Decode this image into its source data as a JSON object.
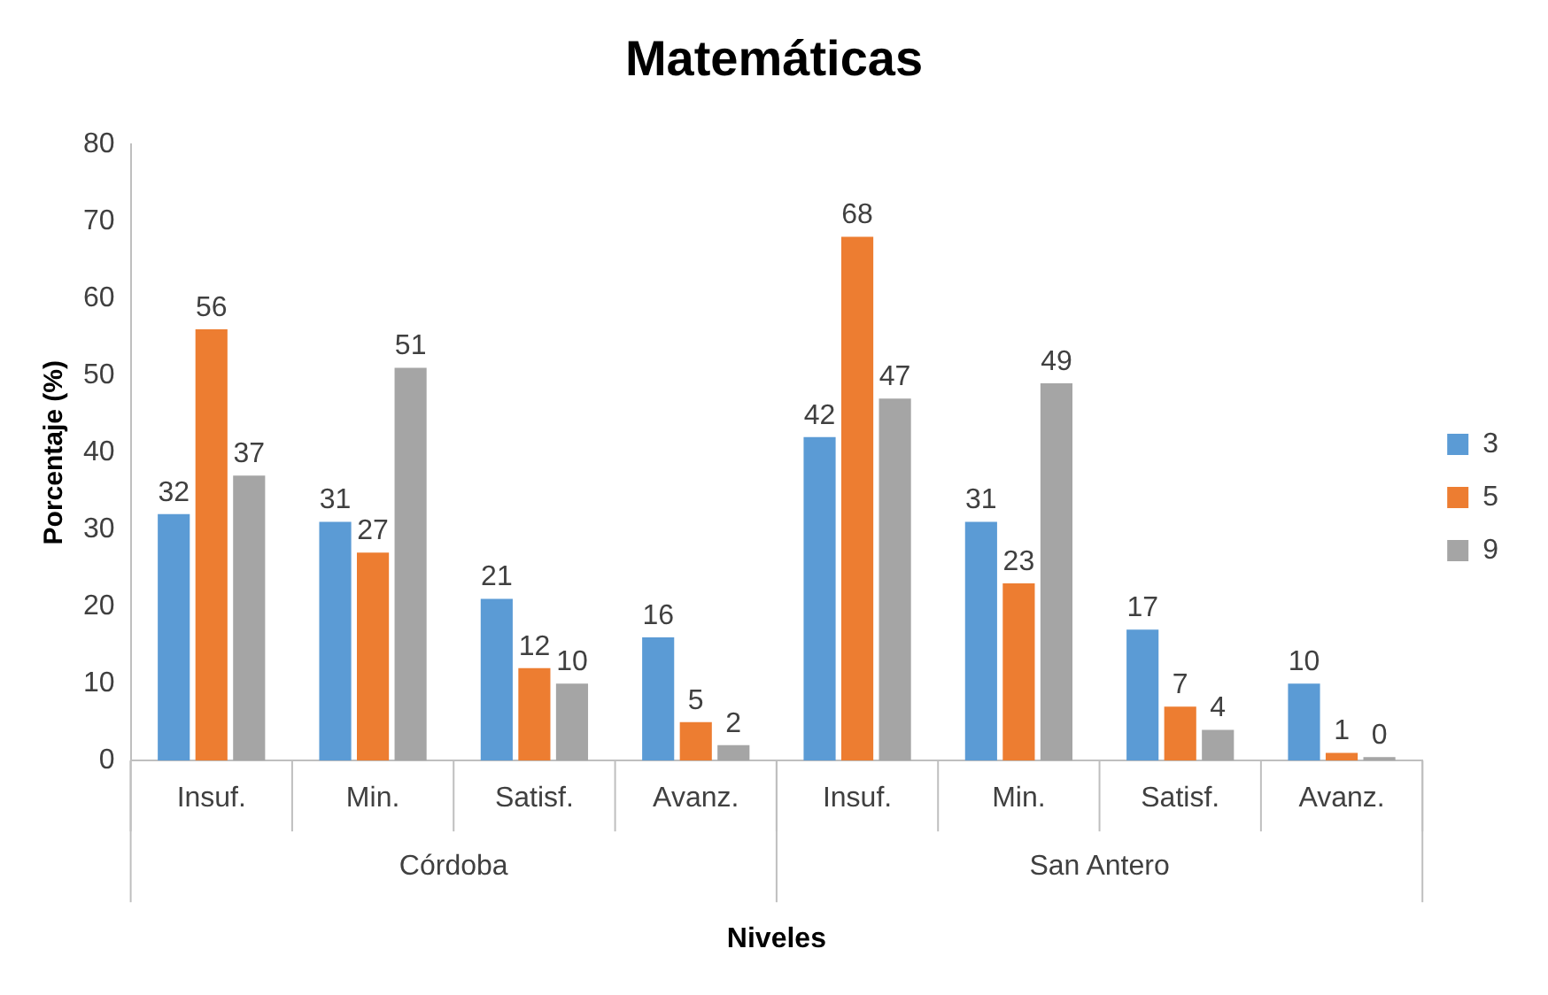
{
  "chart_data": {
    "type": "bar",
    "title": "Matemáticas",
    "xlabel": "Niveles",
    "ylabel": "Porcentaje (%)",
    "categories": [
      "Insuf.",
      "Min.",
      "Satisf.",
      "Avanz.",
      "Insuf.",
      "Min.",
      "Satisf.",
      "Avanz."
    ],
    "annotations": [
      "Córdoba",
      "San Antero"
    ],
    "series": [
      {
        "name": "3",
        "color": "#5b9bd5",
        "values": [
          32,
          31,
          21,
          16,
          42,
          31,
          17,
          10
        ]
      },
      {
        "name": "5",
        "color": "#ed7d31",
        "values": [
          56,
          27,
          12,
          5,
          68,
          23,
          7,
          1
        ]
      },
      {
        "name": "9",
        "color": "#a5a5a5",
        "values": [
          37,
          51,
          10,
          2,
          47,
          49,
          4,
          0
        ]
      }
    ],
    "ylim": [
      0,
      80
    ],
    "yticks": [
      0,
      10,
      20,
      30,
      40,
      50,
      60,
      70,
      80
    ],
    "data_labels": true,
    "legend": "right"
  }
}
